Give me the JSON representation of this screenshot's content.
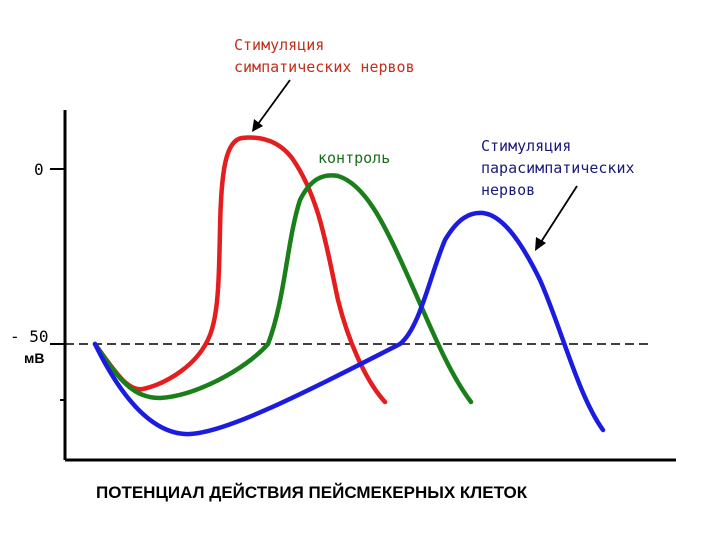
{
  "labels": {
    "sympathetic_line1": "Стимуляция",
    "sympathetic_line2": "симпатических нервов",
    "control": "контроль",
    "parasympathetic_line1": "Стимуляция",
    "parasympathetic_line2": "парасимпатических",
    "parasympathetic_line3": "нервов",
    "tick_zero": "0",
    "tick_minus50": "- 50",
    "unit": "мВ",
    "caption": "ПОТЕНЦИАЛ ДЕЙСТВИЯ ПЕЙСМЕКЕРНЫХ КЛЕТОК"
  },
  "colors": {
    "sympathetic": "#e41e1e",
    "control": "#1a7f1a",
    "parasympathetic": "#1c1ce0",
    "sympathetic_label": "#c0301c",
    "control_label": "#1a6e1a",
    "parasympathetic_label": "#1a1a7a",
    "axis": "#000000"
  }
}
